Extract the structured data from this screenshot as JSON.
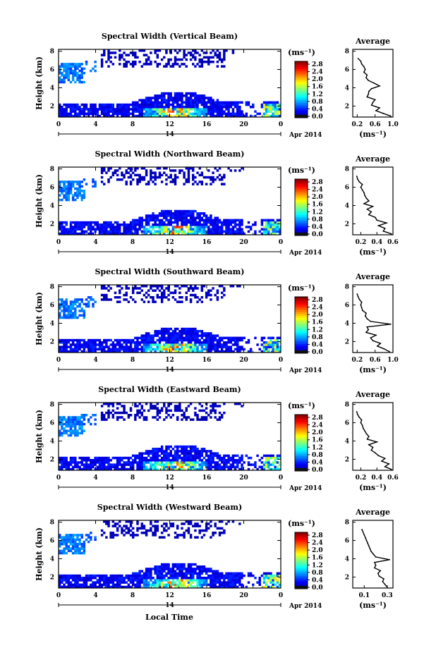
{
  "figure": {
    "xlabel": "Local Time",
    "units_label": "(ms⁻¹)",
    "date_label": "Apr 2014",
    "day_label": "14",
    "average_title": "Average"
  },
  "chart_data": [
    {
      "type": "heatmap",
      "title": "Spectral Width (Vertical Beam)",
      "ylabel": "Height (km)",
      "x_ticks": [
        "0",
        "4",
        "8",
        "12",
        "16",
        "20",
        "0"
      ],
      "y_ticks": [
        "2",
        "4",
        "6",
        "8"
      ],
      "xlim": [
        0,
        24
      ],
      "ylim": [
        0.8,
        8.2
      ],
      "colorbar": {
        "ticks": [
          "0.0",
          "0.4",
          "0.8",
          "1.2",
          "1.6",
          "2.0",
          "2.4",
          "2.8"
        ],
        "range": [
          0,
          3.0
        ]
      },
      "profile": {
        "title": "Average",
        "xlabel": "(ms⁻¹)",
        "x_ticks": [
          "0.2",
          "0.6",
          "1.0"
        ],
        "xlim": [
          0.1,
          1.0
        ],
        "y_ticks": [
          "2",
          "4",
          "6",
          "8"
        ],
        "ylim": [
          0.8,
          8.2
        ],
        "heights": [
          0.9,
          1.2,
          1.5,
          1.8,
          2.1,
          2.4,
          2.7,
          3.0,
          3.3,
          3.6,
          3.9,
          4.2,
          4.5,
          4.8,
          5.1,
          5.4,
          5.7,
          6.0,
          6.3,
          6.6,
          6.9,
          7.2
        ],
        "values": [
          0.95,
          0.78,
          0.62,
          0.7,
          0.52,
          0.55,
          0.6,
          0.42,
          0.45,
          0.46,
          0.52,
          0.7,
          0.58,
          0.45,
          0.4,
          0.42,
          0.35,
          0.38,
          0.35,
          0.3,
          0.28,
          0.22
        ]
      }
    },
    {
      "type": "heatmap",
      "title": "Spectral Width (Northward Beam)",
      "ylabel": "Height (km)",
      "x_ticks": [
        "0",
        "4",
        "8",
        "12",
        "16",
        "20",
        "0"
      ],
      "y_ticks": [
        "2",
        "4",
        "6",
        "8"
      ],
      "xlim": [
        0,
        24
      ],
      "ylim": [
        0.8,
        8.2
      ],
      "colorbar": {
        "ticks": [
          "0.0",
          "0.4",
          "0.8",
          "1.2",
          "1.6",
          "2.0",
          "2.4",
          "2.8"
        ],
        "range": [
          0,
          3.0
        ]
      },
      "profile": {
        "title": "Average",
        "xlabel": "(ms⁻¹)",
        "x_ticks": [
          "0.2",
          "0.4",
          "0.6"
        ],
        "xlim": [
          0.1,
          0.6
        ],
        "y_ticks": [
          "2",
          "4",
          "6",
          "8"
        ],
        "ylim": [
          0.8,
          8.2
        ],
        "heights": [
          0.9,
          1.2,
          1.5,
          1.8,
          2.1,
          2.4,
          2.7,
          3.0,
          3.3,
          3.6,
          3.9,
          4.2,
          4.5,
          4.8,
          5.1,
          5.4,
          5.7,
          6.0,
          6.3,
          6.6,
          6.9,
          7.2
        ],
        "values": [
          0.58,
          0.48,
          0.5,
          0.42,
          0.52,
          0.4,
          0.38,
          0.3,
          0.33,
          0.28,
          0.35,
          0.24,
          0.3,
          0.27,
          0.25,
          0.24,
          0.22,
          0.2,
          0.22,
          0.18,
          0.16,
          0.15
        ]
      }
    },
    {
      "type": "heatmap",
      "title": "Spectral Width (Southward Beam)",
      "ylabel": "Height (km)",
      "x_ticks": [
        "0",
        "4",
        "8",
        "12",
        "16",
        "20",
        "0"
      ],
      "y_ticks": [
        "2",
        "4",
        "6",
        "8"
      ],
      "xlim": [
        0,
        24
      ],
      "ylim": [
        0.8,
        8.2
      ],
      "colorbar": {
        "ticks": [
          "0.0",
          "0.4",
          "0.8",
          "1.2",
          "1.6",
          "2.0",
          "2.4",
          "2.8"
        ],
        "range": [
          0,
          3.0
        ]
      },
      "profile": {
        "title": "Average",
        "xlabel": "(ms⁻¹)",
        "x_ticks": [
          "0.2",
          "0.6",
          "1.0"
        ],
        "xlim": [
          0.1,
          1.0
        ],
        "y_ticks": [
          "2",
          "4",
          "6",
          "8"
        ],
        "ylim": [
          0.8,
          8.2
        ],
        "heights": [
          0.9,
          1.2,
          1.5,
          1.8,
          2.1,
          2.4,
          2.7,
          3.0,
          3.3,
          3.6,
          3.9,
          4.2,
          4.5,
          4.8,
          5.1,
          5.4,
          5.7,
          6.0,
          6.3,
          6.6,
          6.9,
          7.2
        ],
        "values": [
          0.92,
          0.8,
          0.65,
          0.72,
          0.55,
          0.5,
          0.62,
          0.4,
          0.45,
          0.42,
          0.95,
          0.5,
          0.42,
          0.38,
          0.4,
          0.32,
          0.3,
          0.28,
          0.3,
          0.25,
          0.22,
          0.2
        ]
      }
    },
    {
      "type": "heatmap",
      "title": "Spectral Width (Eastward Beam)",
      "ylabel": "Height (km)",
      "x_ticks": [
        "0",
        "4",
        "8",
        "12",
        "16",
        "20",
        "0"
      ],
      "y_ticks": [
        "2",
        "4",
        "6",
        "8"
      ],
      "xlim": [
        0,
        24
      ],
      "ylim": [
        0.8,
        8.2
      ],
      "colorbar": {
        "ticks": [
          "0.0",
          "0.4",
          "0.8",
          "1.2",
          "1.6",
          "2.0",
          "2.4",
          "2.8"
        ],
        "range": [
          0,
          3.0
        ]
      },
      "profile": {
        "title": "Average",
        "xlabel": "(ms⁻¹)",
        "x_ticks": [
          "0.2",
          "0.4",
          "0.6"
        ],
        "xlim": [
          0.1,
          0.6
        ],
        "y_ticks": [
          "2",
          "4",
          "6",
          "8"
        ],
        "ylim": [
          0.8,
          8.2
        ],
        "heights": [
          0.9,
          1.2,
          1.5,
          1.8,
          2.1,
          2.4,
          2.7,
          3.0,
          3.3,
          3.6,
          3.9,
          4.2,
          4.5,
          4.8,
          5.1,
          5.4,
          5.7,
          6.0,
          6.3,
          6.6,
          6.9,
          7.2
        ],
        "values": [
          0.58,
          0.5,
          0.55,
          0.46,
          0.5,
          0.42,
          0.38,
          0.33,
          0.35,
          0.3,
          0.4,
          0.28,
          0.3,
          0.27,
          0.25,
          0.23,
          0.22,
          0.2,
          0.21,
          0.18,
          0.16,
          0.15
        ]
      }
    },
    {
      "type": "heatmap",
      "title": "Spectral Width (Westward Beam)",
      "ylabel": "Height (km)",
      "x_ticks": [
        "0",
        "4",
        "8",
        "12",
        "16",
        "20",
        "0"
      ],
      "y_ticks": [
        "2",
        "4",
        "6",
        "8"
      ],
      "xlim": [
        0,
        24
      ],
      "ylim": [
        0.8,
        8.2
      ],
      "colorbar": {
        "ticks": [
          "0.0",
          "0.4",
          "0.8",
          "1.2",
          "1.6",
          "2.0",
          "2.4",
          "2.8"
        ],
        "range": [
          0,
          3.0
        ]
      },
      "profile": {
        "title": "Average",
        "xlabel": "(ms⁻¹)",
        "x_ticks": [
          "0.1",
          "0.3"
        ],
        "xlim": [
          0.0,
          0.35
        ],
        "y_ticks": [
          "2",
          "4",
          "6",
          "8"
        ],
        "ylim": [
          0.8,
          8.2
        ],
        "heights": [
          0.9,
          1.2,
          1.5,
          1.8,
          2.1,
          2.4,
          2.7,
          3.0,
          3.3,
          3.6,
          3.9,
          4.2,
          4.5,
          4.8,
          5.1,
          5.4,
          5.7,
          6.0,
          6.3,
          6.6,
          6.9,
          7.2
        ],
        "values": [
          0.3,
          0.28,
          0.26,
          0.27,
          0.23,
          0.22,
          0.24,
          0.19,
          0.2,
          0.19,
          0.32,
          0.2,
          0.18,
          0.16,
          0.15,
          0.14,
          0.13,
          0.12,
          0.11,
          0.1,
          0.09,
          0.08
        ]
      }
    }
  ]
}
